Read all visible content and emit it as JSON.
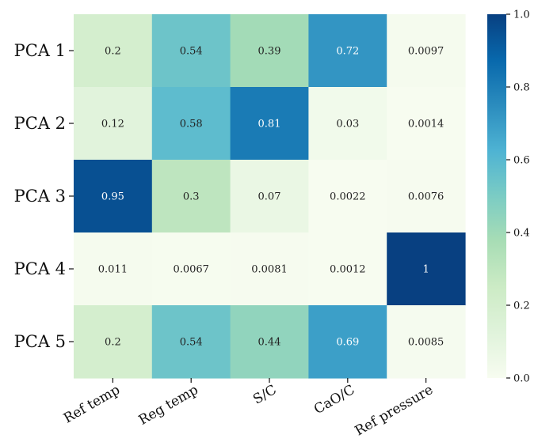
{
  "chart_data": {
    "type": "heatmap",
    "title": "",
    "xlabel": "",
    "ylabel": "",
    "rows": [
      "PCA 1",
      "PCA 2",
      "PCA 3",
      "PCA 4",
      "PCA 5"
    ],
    "columns": [
      "Ref temp",
      "Reg temp",
      "S/C",
      "CaO/C",
      "Ref pressure"
    ],
    "values": [
      [
        0.2,
        0.54,
        0.39,
        0.72,
        0.0097
      ],
      [
        0.12,
        0.58,
        0.81,
        0.03,
        0.0014
      ],
      [
        0.95,
        0.3,
        0.07,
        0.0022,
        0.0076
      ],
      [
        0.011,
        0.0067,
        0.0081,
        0.0012,
        1
      ],
      [
        0.2,
        0.54,
        0.44,
        0.69,
        0.0085
      ]
    ],
    "value_labels": [
      [
        "0.2",
        "0.54",
        "0.39",
        "0.72",
        "0.0097"
      ],
      [
        "0.12",
        "0.58",
        "0.81",
        "0.03",
        "0.0014"
      ],
      [
        "0.95",
        "0.3",
        "0.07",
        "0.0022",
        "0.0076"
      ],
      [
        "0.011",
        "0.0067",
        "0.0081",
        "0.0012",
        "1"
      ],
      [
        "0.2",
        "0.54",
        "0.44",
        "0.69",
        "0.0085"
      ]
    ],
    "colormap": "GnBu",
    "vmin": 0.0,
    "vmax": 1.0,
    "colorbar_ticks": [
      "0.0",
      "0.2",
      "0.4",
      "0.6",
      "0.8",
      "1.0"
    ],
    "grid": false,
    "colorbar_placement": "right"
  }
}
